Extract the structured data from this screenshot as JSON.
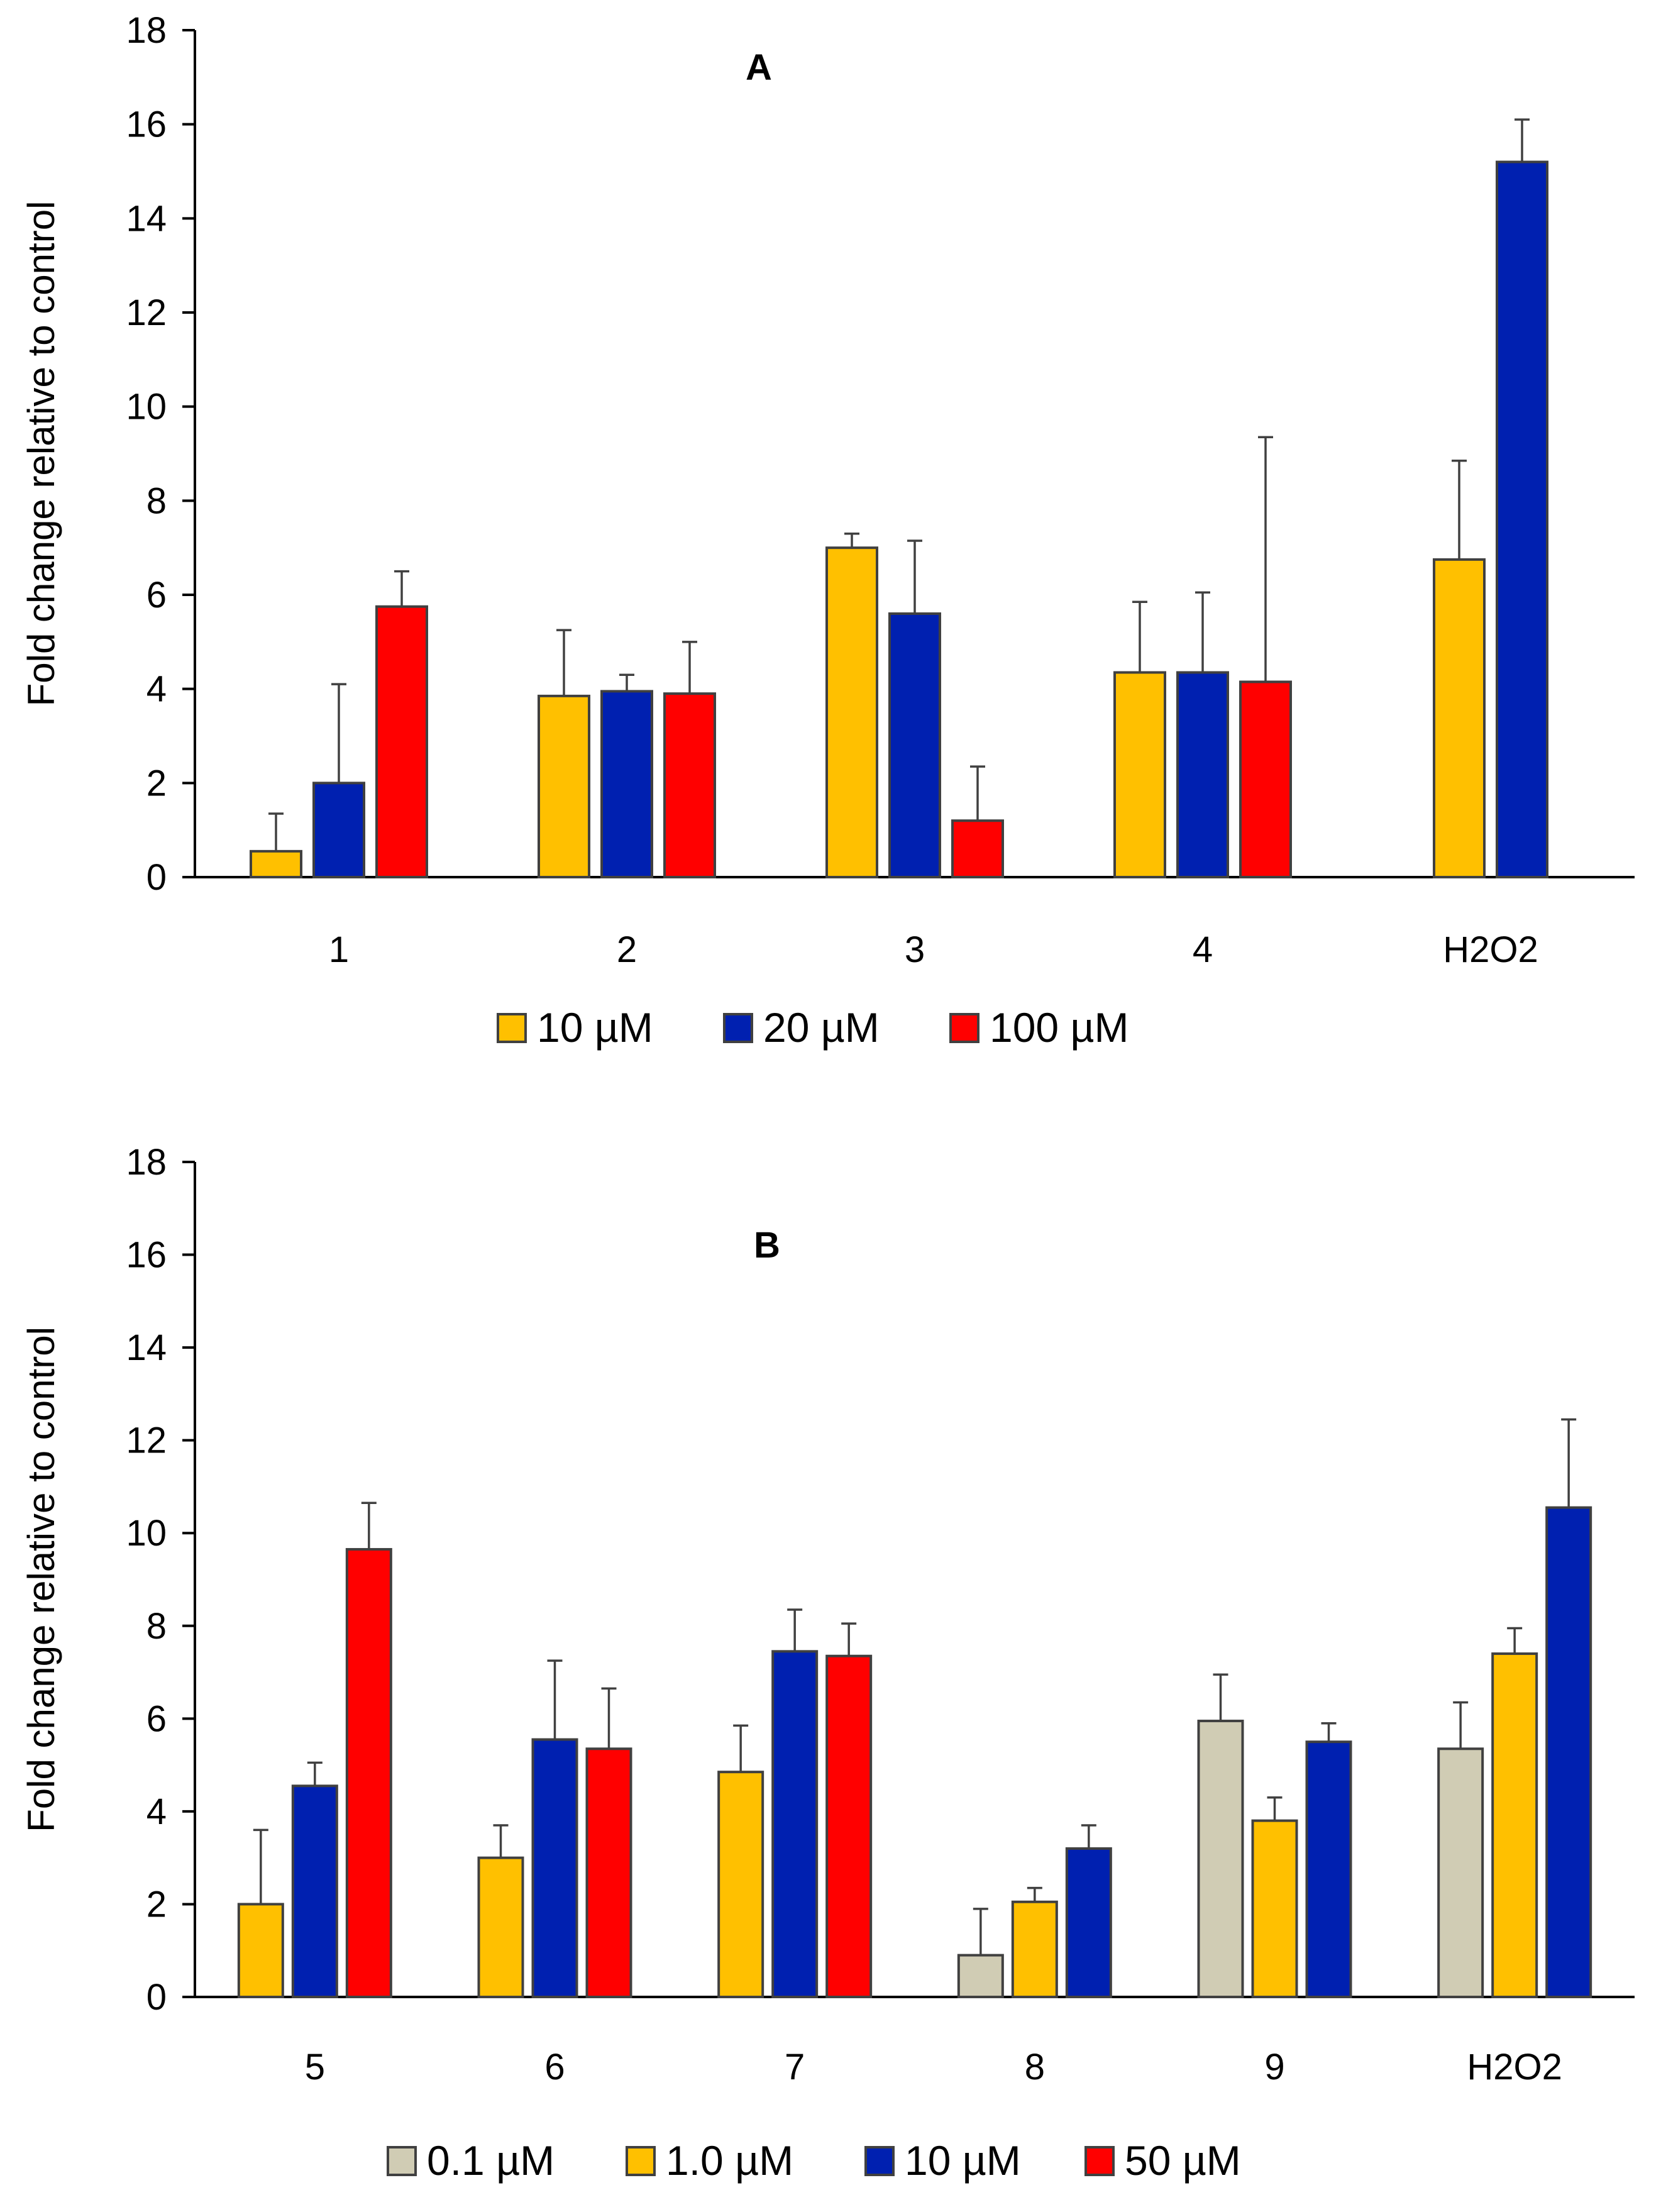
{
  "chart_data": [
    {
      "type": "bar",
      "title": "A",
      "xlabel": "",
      "ylabel": "Fold change relative to control",
      "ylim": [
        0,
        18
      ],
      "yticks": [
        0,
        2,
        4,
        6,
        8,
        10,
        12,
        14,
        16,
        18
      ],
      "categories": [
        "1",
        "2",
        "3",
        "4",
        "H2O2"
      ],
      "legend_position": "bottom",
      "series": [
        {
          "name": "10 µM",
          "color": "#FFC000",
          "values": [
            0.55,
            3.85,
            7.0,
            4.35,
            6.75
          ],
          "errors": [
            0.8,
            1.4,
            0.3,
            1.5,
            2.1
          ]
        },
        {
          "name": "20 µM",
          "color": "#0020B0",
          "values": [
            2.0,
            3.95,
            5.6,
            4.35,
            15.2
          ],
          "errors": [
            2.1,
            0.35,
            1.55,
            1.7,
            0.9
          ]
        },
        {
          "name": "100 µM",
          "color": "#FF0000",
          "values": [
            5.75,
            3.9,
            1.2,
            4.15,
            null
          ],
          "errors": [
            0.75,
            1.1,
            1.15,
            5.2,
            null
          ]
        }
      ]
    },
    {
      "type": "bar",
      "title": "B",
      "xlabel": "",
      "ylabel": "Fold change relative to control",
      "ylim": [
        0,
        18
      ],
      "yticks": [
        0,
        2,
        4,
        6,
        8,
        10,
        12,
        14,
        16,
        18
      ],
      "categories": [
        "5",
        "6",
        "7",
        "8",
        "9",
        "H2O2"
      ],
      "legend_position": "bottom",
      "series": [
        {
          "name": "0.1 µM",
          "color": "#D0CCB4",
          "values": [
            null,
            null,
            null,
            0.9,
            5.95,
            5.35
          ],
          "errors": [
            null,
            null,
            null,
            1.0,
            1.0,
            1.0
          ]
        },
        {
          "name": "1.0 µM",
          "color": "#FFC000",
          "values": [
            2.0,
            3.0,
            4.85,
            2.05,
            3.8,
            7.4
          ],
          "errors": [
            1.6,
            0.7,
            1.0,
            0.3,
            0.5,
            0.55
          ]
        },
        {
          "name": "10 µM",
          "color": "#0020B0",
          "values": [
            4.55,
            5.55,
            7.45,
            3.2,
            5.5,
            10.55
          ],
          "errors": [
            0.5,
            1.7,
            0.9,
            0.5,
            0.4,
            1.9
          ]
        },
        {
          "name": "50 µM",
          "color": "#FF0000",
          "values": [
            9.65,
            5.35,
            7.35,
            null,
            null,
            null
          ],
          "errors": [
            1.0,
            1.3,
            0.7,
            null,
            null,
            null
          ]
        }
      ]
    }
  ]
}
